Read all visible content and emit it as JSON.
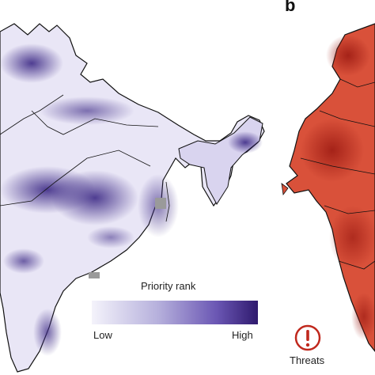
{
  "panels": {
    "b_label": "b"
  },
  "legend": {
    "title": "Priority rank",
    "low_label": "Low",
    "high_label": "High",
    "color_low": "#f4f3fb",
    "color_high": "#2f1a6e"
  },
  "threats": {
    "label": "Threats",
    "icon": "exclamation-circle-icon",
    "color": "#c0281d"
  },
  "maps": {
    "left_map_fill": "#e9e6f6",
    "left_map_hotspot": "#5a4aa5",
    "right_map_fill": "#d9513a",
    "right_map_hotspot": "#a81f16",
    "border_color": "#111111"
  }
}
